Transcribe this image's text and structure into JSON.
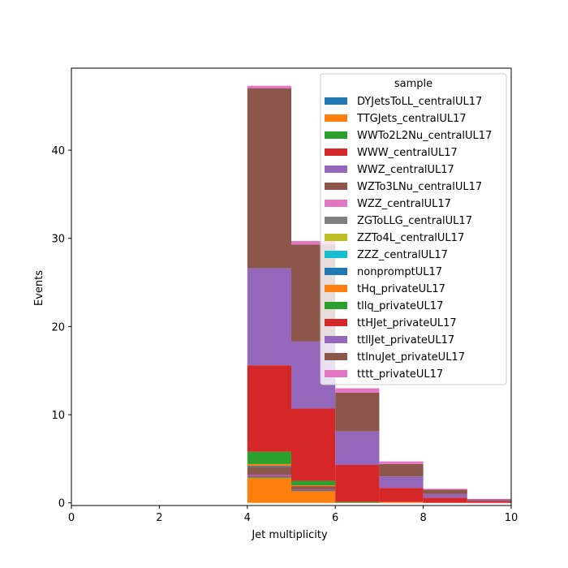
{
  "chart_data": {
    "type": "bar",
    "stacked": true,
    "histogram": true,
    "xlabel": "Jet multiplicity",
    "ylabel": "Events",
    "xlim": [
      0,
      10
    ],
    "ylim": [
      -0.3,
      49.3
    ],
    "xticks": [
      "0",
      "2",
      "4",
      "6",
      "8",
      "10"
    ],
    "yticks": [
      "0",
      "10",
      "20",
      "30",
      "40"
    ],
    "bin_edges": [
      4,
      5,
      6,
      7,
      8,
      9,
      10
    ],
    "legend": {
      "title": "sample",
      "position": "upper-right"
    },
    "series": [
      {
        "name": "DYJetsToLL_centralUL17",
        "color": "#1f77b4",
        "values": [
          0,
          0,
          0,
          0,
          0,
          0
        ]
      },
      {
        "name": "TTGJets_centralUL17",
        "color": "#ff7f0e",
        "values": [
          2.8,
          1.3,
          0,
          0.1,
          0,
          0
        ]
      },
      {
        "name": "WWTo2L2Nu_centralUL17",
        "color": "#2ca02c",
        "values": [
          0.1,
          0.05,
          0,
          0,
          0,
          0
        ]
      },
      {
        "name": "WWW_centralUL17",
        "color": "#d62728",
        "values": [
          0.1,
          0.05,
          0,
          0,
          0,
          0
        ]
      },
      {
        "name": "WWZ_centralUL17",
        "color": "#9467bd",
        "values": [
          0.2,
          0.1,
          0,
          0,
          0,
          0
        ]
      },
      {
        "name": "WZTo3LNu_centralUL17",
        "color": "#8c564b",
        "values": [
          0.9,
          0.4,
          0,
          0,
          0,
          0
        ]
      },
      {
        "name": "WZZ_centralUL17",
        "color": "#e377c2",
        "values": [
          0,
          0,
          0,
          0,
          0,
          0
        ]
      },
      {
        "name": "ZGToLLG_centralUL17",
        "color": "#7f7f7f",
        "values": [
          0,
          0,
          0,
          0,
          0,
          0
        ]
      },
      {
        "name": "ZZTo4L_centralUL17",
        "color": "#bcbd22",
        "values": [
          0,
          0,
          0,
          0,
          0,
          0
        ]
      },
      {
        "name": "ZZZ_centralUL17",
        "color": "#17becf",
        "values": [
          0,
          0,
          0,
          0,
          0,
          0
        ]
      },
      {
        "name": "nonpromptUL17",
        "color": "#1f77b4",
        "values": [
          0.1,
          0,
          0,
          0,
          0,
          0
        ]
      },
      {
        "name": "tHq_privateUL17",
        "color": "#ff7f0e",
        "values": [
          0.2,
          0.1,
          0,
          0,
          0,
          0
        ]
      },
      {
        "name": "tllq_privateUL17",
        "color": "#2ca02c",
        "values": [
          1.4,
          0.5,
          0.1,
          0,
          0,
          0
        ]
      },
      {
        "name": "ttHJet_privateUL17",
        "color": "#d62728",
        "values": [
          9.8,
          8.2,
          4.2,
          1.6,
          0.6,
          0.2
        ]
      },
      {
        "name": "ttllJet_privateUL17",
        "color": "#9467bd",
        "values": [
          11.0,
          7.6,
          3.8,
          1.3,
          0.4,
          0.1
        ]
      },
      {
        "name": "ttlnuJet_privateUL17",
        "color": "#8c564b",
        "values": [
          20.4,
          11.0,
          4.4,
          1.4,
          0.5,
          0.1
        ]
      },
      {
        "name": "tttt_privateUL17",
        "color": "#e377c2",
        "values": [
          0.3,
          0.4,
          0.5,
          0.3,
          0.1,
          0.05
        ]
      }
    ]
  }
}
